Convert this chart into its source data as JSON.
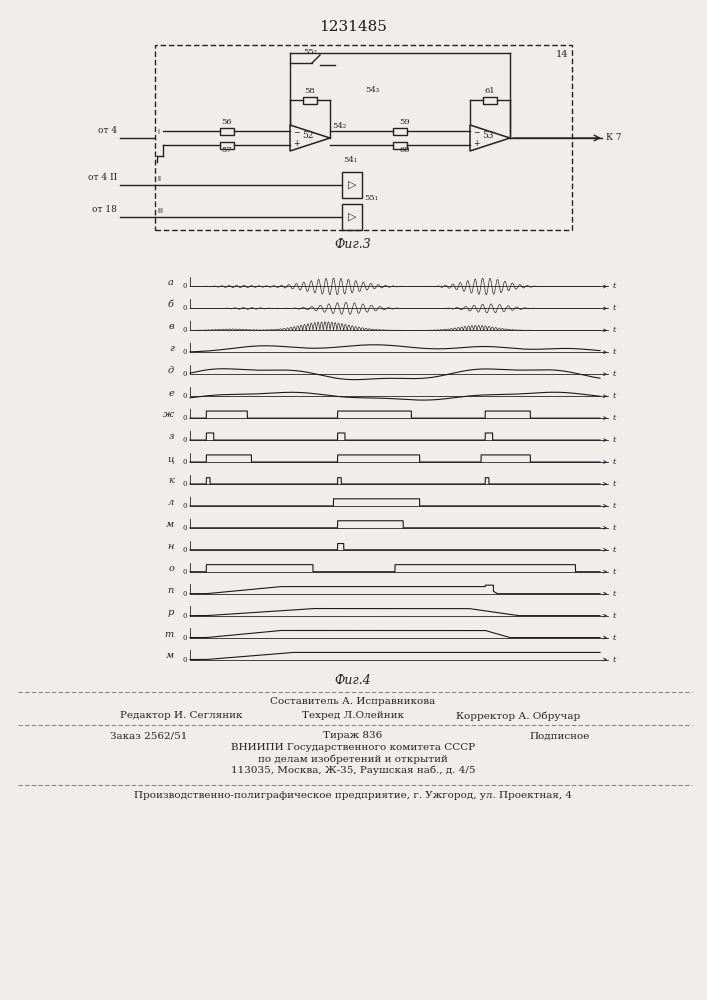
{
  "title": "1231485",
  "fig3_caption": "Фиг.3",
  "fig4_caption": "Фиг.4",
  "bottom_text_0": "Составитель А. Исправникова",
  "bottom_text_1l": "Редактор И. Сегляник",
  "bottom_text_1c": "Техред Л.Олейник",
  "bottom_text_1r": "Корректор А. Обручар",
  "bottom_text_2l": "Заказ 2562/51",
  "bottom_text_2c": "Тираж 836",
  "bottom_text_2r": "Подписное",
  "bottom_text_3": "ВНИИПИ Государственного комитета СССР",
  "bottom_text_4": "по делам изобретений и открытий",
  "bottom_text_5": "113035, Москва, Ж-35, Раушская наб., д. 4/5",
  "bottom_text_6": "Производственно-полиграфическое предприятие, г. Ужгород, ул. Проектная, 4",
  "bg_color": "#f0eeea",
  "labels": [
    "а",
    "б",
    "в",
    "г",
    "д",
    "е",
    "ж",
    "з",
    "ц",
    "к",
    "л",
    "м",
    "н",
    "о",
    "п",
    "р",
    "т",
    "м"
  ]
}
